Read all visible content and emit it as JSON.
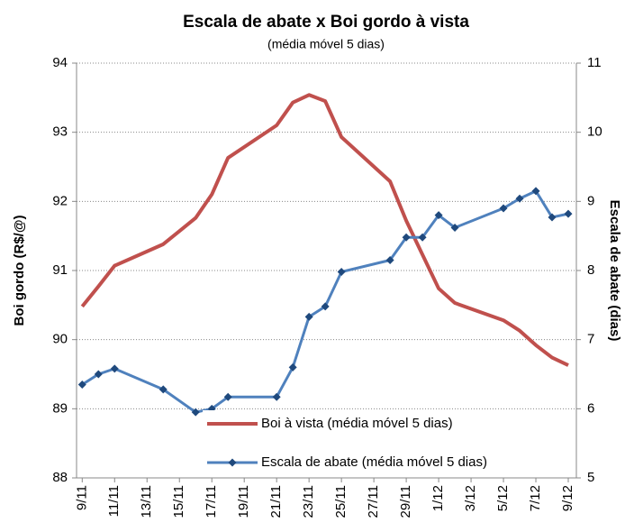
{
  "chart_data": {
    "type": "line",
    "title": "Escala de abate x Boi gordo à vista",
    "subtitle": "(média móvel 5 dias)",
    "y_label": "Boi gordo (R$/@)",
    "y2_label": "Escala de abate (dias)",
    "x": [
      0,
      1,
      2,
      5,
      7,
      8,
      9,
      12,
      13,
      14,
      15,
      16,
      19,
      20,
      21,
      22,
      23,
      26,
      27,
      28,
      29,
      30
    ],
    "xlim": [
      -0.35,
      30.5
    ],
    "xticks": [
      {
        "value": 0,
        "label": "9/11"
      },
      {
        "value": 2,
        "label": "11/11"
      },
      {
        "value": 4,
        "label": "13/11"
      },
      {
        "value": 6,
        "label": "15/11"
      },
      {
        "value": 8,
        "label": "17/11"
      },
      {
        "value": 10,
        "label": "19/11"
      },
      {
        "value": 12,
        "label": "21/11"
      },
      {
        "value": 14,
        "label": "23/11"
      },
      {
        "value": 16,
        "label": "25/11"
      },
      {
        "value": 18,
        "label": "27/11"
      },
      {
        "value": 20,
        "label": "29/11"
      },
      {
        "value": 22,
        "label": "1/12"
      },
      {
        "value": 24,
        "label": "3/12"
      },
      {
        "value": 26,
        "label": "5/12"
      },
      {
        "value": 28,
        "label": "7/12"
      },
      {
        "value": 30,
        "label": "9/12"
      }
    ],
    "ylim": [
      88,
      94
    ],
    "yticks": [
      88,
      89,
      90,
      91,
      92,
      93,
      94
    ],
    "y2lim": [
      5,
      11
    ],
    "y2ticks": [
      5,
      6,
      7,
      8,
      9,
      10,
      11
    ],
    "grid": true,
    "legend": "bottom-right",
    "series": [
      {
        "name": "Boi à vista (média móvel 5 dias)",
        "color": "#c0504d",
        "markers": false,
        "values": [
          90.48,
          90.77,
          91.07,
          91.38,
          91.76,
          92.1,
          92.63,
          93.1,
          93.43,
          93.54,
          93.45,
          92.93,
          92.29,
          91.72,
          91.23,
          90.74,
          90.53,
          90.28,
          90.13,
          89.92,
          89.74,
          89.63
        ]
      },
      {
        "name": "Escala de abate (média móvel 5 dias)",
        "color": "#4f81bd",
        "marker_color": "#1f497d",
        "markers": true,
        "axis": "y2",
        "values": [
          6.35,
          6.5,
          6.58,
          6.28,
          5.95,
          6.0,
          6.17,
          6.17,
          6.6,
          7.33,
          7.48,
          7.98,
          8.15,
          8.48,
          8.48,
          8.8,
          8.62,
          8.9,
          9.04,
          9.15,
          8.77,
          8.82
        ]
      }
    ]
  }
}
